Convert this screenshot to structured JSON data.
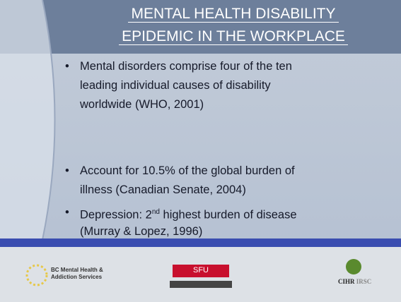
{
  "slide": {
    "title": [
      "MENTAL HEALTH DISABILITY",
      "EPIDEMIC IN THE WORKPLACE"
    ],
    "bullets": [
      {
        "lines": [
          "Mental disorders comprise four of the ten",
          "leading individual causes of disability",
          "worldwide (WHO, 2001)"
        ]
      },
      {
        "lines": [
          "Account for 10.5% of the global burden of",
          "illness (Canadian Senate, 2004)"
        ]
      },
      {
        "first": [
          "Depression: 2",
          "nd",
          " highest burden of disease"
        ],
        "lines": [
          "(Murray & Lopez, 1996)"
        ]
      }
    ],
    "logos": {
      "bc": [
        "BC Mental Health &",
        "Addiction Services"
      ],
      "sfu": "SFU",
      "cihr": "CIHR",
      "irsc": "IRSC"
    }
  }
}
